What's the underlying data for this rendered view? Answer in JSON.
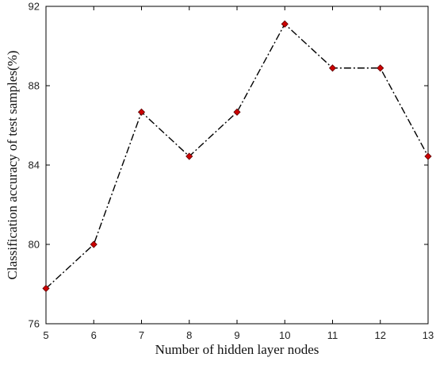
{
  "chart_data": {
    "type": "line",
    "title": "",
    "xlabel": "Number of hidden layer nodes",
    "ylabel": "Classification accuracy of test samples(%)",
    "x": [
      5,
      6,
      7,
      8,
      9,
      10,
      11,
      12,
      13
    ],
    "series": [
      {
        "values": [
          77.78,
          80.0,
          86.67,
          84.44,
          86.67,
          91.11,
          88.89,
          88.89,
          84.44
        ],
        "line_color": "#000000",
        "line_style": "dash-dot",
        "marker": "diamond",
        "marker_color": "#cc0000"
      }
    ],
    "xlim": [
      5,
      13
    ],
    "ylim": [
      76,
      92
    ],
    "xticks": [
      "5",
      "6",
      "7",
      "8",
      "9",
      "10",
      "11",
      "12",
      "13"
    ],
    "yticks": [
      "76",
      "80",
      "84",
      "88",
      "92"
    ],
    "grid": false
  }
}
